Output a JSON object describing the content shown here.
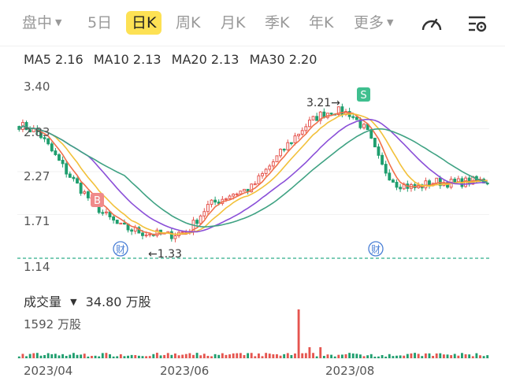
{
  "tabs": [
    {
      "label": "盘中",
      "dropdown": true,
      "active": false
    },
    {
      "label": "5日",
      "active": false
    },
    {
      "label": "日K",
      "active": true
    },
    {
      "label": "周K",
      "active": false
    },
    {
      "label": "月K",
      "active": false
    },
    {
      "label": "季K",
      "active": false
    },
    {
      "label": "年K",
      "active": false
    },
    {
      "label": "更多",
      "dropdown": true,
      "active": false
    }
  ],
  "toolbar_icons": [
    "speedometer-icon",
    "settings-list-icon"
  ],
  "ma_legend": [
    {
      "label": "MA5 2.16",
      "color": "#f0704a"
    },
    {
      "label": "MA10 2.13",
      "color": "#f2c13a"
    },
    {
      "label": "MA20 2.13",
      "color": "#8a4fd8"
    },
    {
      "label": "MA30 2.20",
      "color": "#3fa283"
    }
  ],
  "chart_data": {
    "type": "candlestick",
    "y_ticks": [
      "3.40",
      "2.83",
      "2.27",
      "1.71",
      "1.14"
    ],
    "ylim": [
      1.14,
      3.4
    ],
    "x_ticks": [
      "2023/04",
      "2023/06",
      "2023/08"
    ],
    "annotations": {
      "high": "3.21",
      "low": "1.33",
      "buy_marker": "B",
      "sell_marker": "S",
      "finance_marker": "财"
    },
    "baseline_price": 1.14,
    "volume_label": "成交量",
    "volume_value": "34.80 万股",
    "volume_max": "1592 万股"
  }
}
